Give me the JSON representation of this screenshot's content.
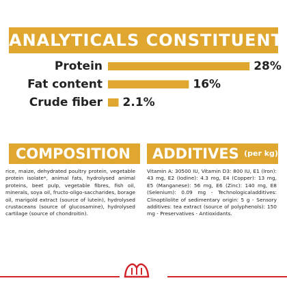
{
  "analytics": {
    "title": "ANALYTICALS CONSTITUENTS",
    "rows": [
      {
        "label": "Protein",
        "value": 28,
        "value_label": "28%"
      },
      {
        "label": "Fat content",
        "value": 16,
        "value_label": "16%"
      },
      {
        "label": "Crude fiber",
        "value": 2.1,
        "value_label": "2.1%"
      }
    ]
  },
  "composition": {
    "title": "COMPOSITION",
    "text": "rice, maize, dehydrated poultry protein, vegetable protein isolate*, animal fats, hydrolysed animal proteins, beet pulp, vegetable fibres, fish oil, minerals, soya oil, fructo-oligo-saccharides, borage oil, marigold extract (source of lutein), hydrolysed crustaceans (source of glucosamine), hydrolysed cartilage (source of chondroitin)."
  },
  "additives": {
    "title": "ADDITIVES",
    "subtitle": "(per kg)",
    "text": "Vitamin A: 30500 IU, Vitamin D3: 800 IU, E1 (Iron): 43 mg, E2 (Iodine): 4.3 mg, E4 (Copper): 13 mg, E5 (Manganese): 56 mg, E6 (Zinc): 140 mg, E8 (Selenium): 0.09 mg - Technologicaladditives: Clinoptilolite of sedimentary origin: 5 g - Sensory additives: tea extract (source of polyphenols): 150 mg - Preservatives - Antioxidants."
  }
}
